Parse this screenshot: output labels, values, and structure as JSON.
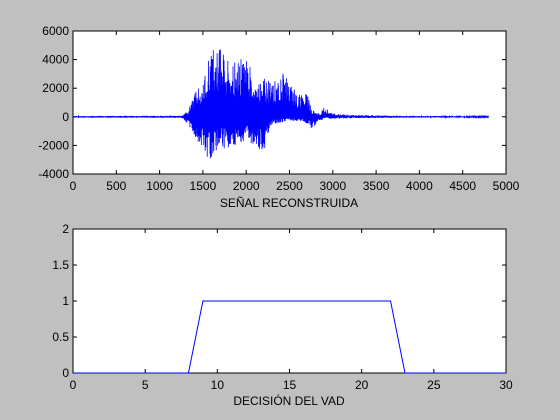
{
  "figure": {
    "background": "#c0c0c0"
  },
  "chart_data": [
    {
      "type": "line",
      "title": "",
      "xlabel": "SEÑAL RECONSTRUIDA",
      "ylabel": "",
      "xlim": [
        0,
        5000
      ],
      "ylim": [
        -4000,
        6000
      ],
      "xticks": [
        "0",
        "500",
        "1000",
        "1500",
        "2000",
        "2500",
        "3000",
        "3500",
        "4000",
        "4500",
        "5000"
      ],
      "yticks": [
        "-4000",
        "-2000",
        "0",
        "2000",
        "4000",
        "6000"
      ],
      "grid": false,
      "line_color": "#0000ff",
      "n_samples": 4800,
      "envelope": {
        "x": [
          0,
          1250,
          1330,
          1400,
          1500,
          1550,
          1600,
          1700,
          1800,
          1900,
          2000,
          2100,
          2200,
          2300,
          2400,
          2500,
          2600,
          2700,
          2750,
          2800,
          2850,
          2900,
          3000,
          3200,
          3500,
          4000,
          4500,
          4800
        ],
        "upper": [
          60,
          80,
          400,
          1800,
          2200,
          4200,
          5100,
          4900,
          4200,
          3800,
          4500,
          2600,
          2900,
          2300,
          3300,
          2500,
          1600,
          1800,
          600,
          400,
          200,
          700,
          250,
          150,
          100,
          60,
          50,
          30
        ],
        "lower": [
          -60,
          -80,
          -500,
          -1700,
          -2300,
          -3300,
          -2800,
          -2200,
          -2300,
          -2300,
          -1800,
          -1900,
          -2600,
          -500,
          -400,
          -300,
          -300,
          -500,
          -800,
          -600,
          -350,
          -100,
          -150,
          -100,
          -80,
          -60,
          -50,
          -30
        ]
      }
    },
    {
      "type": "line",
      "title": "",
      "xlabel": "DECISIÓN DEL VAD",
      "ylabel": "",
      "xlim": [
        0,
        30
      ],
      "ylim": [
        0,
        2
      ],
      "xticks": [
        "0",
        "5",
        "10",
        "15",
        "20",
        "25",
        "30"
      ],
      "yticks": [
        "0",
        "0.5",
        "1",
        "1.5",
        "2"
      ],
      "grid": false,
      "line_color": "#0000ff",
      "x": [
        0,
        8,
        9,
        22,
        23,
        30
      ],
      "y": [
        0,
        0,
        1,
        1,
        0,
        0
      ]
    }
  ]
}
